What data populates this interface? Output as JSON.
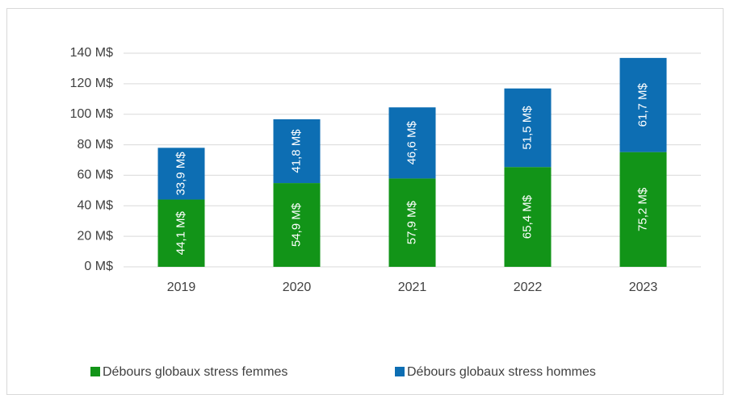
{
  "chart_data": {
    "type": "bar",
    "stacked": true,
    "categories": [
      "2019",
      "2020",
      "2021",
      "2022",
      "2023"
    ],
    "series": [
      {
        "name": "Débours globaux stress femmes",
        "color": "#129418",
        "values": [
          44.1,
          54.9,
          57.9,
          65.4,
          75.2
        ],
        "value_labels": [
          "44,1 M$",
          "54,9 M$",
          "57,9 M$",
          "65,4 M$",
          "75,2 M$"
        ]
      },
      {
        "name": "Débours globaux stress hommes",
        "color": "#0d6eb3",
        "values": [
          33.9,
          41.8,
          46.6,
          51.5,
          61.7
        ],
        "value_labels": [
          "33,9 M$",
          "41,8 M$",
          "46,6 M$",
          "51,5 M$",
          "61,7 M$"
        ]
      }
    ],
    "ylim": [
      0,
      140
    ],
    "yticks": [
      {
        "value": 0,
        "label": "0 M$"
      },
      {
        "value": 20,
        "label": "20 M$"
      },
      {
        "value": 40,
        "label": "40 M$"
      },
      {
        "value": 60,
        "label": "60 M$"
      },
      {
        "value": 80,
        "label": "80 M$"
      },
      {
        "value": 100,
        "label": "100 M$"
      },
      {
        "value": 120,
        "label": "120 M$"
      },
      {
        "value": 140,
        "label": "140 M$"
      }
    ],
    "grid": true,
    "legend": "bottom"
  }
}
